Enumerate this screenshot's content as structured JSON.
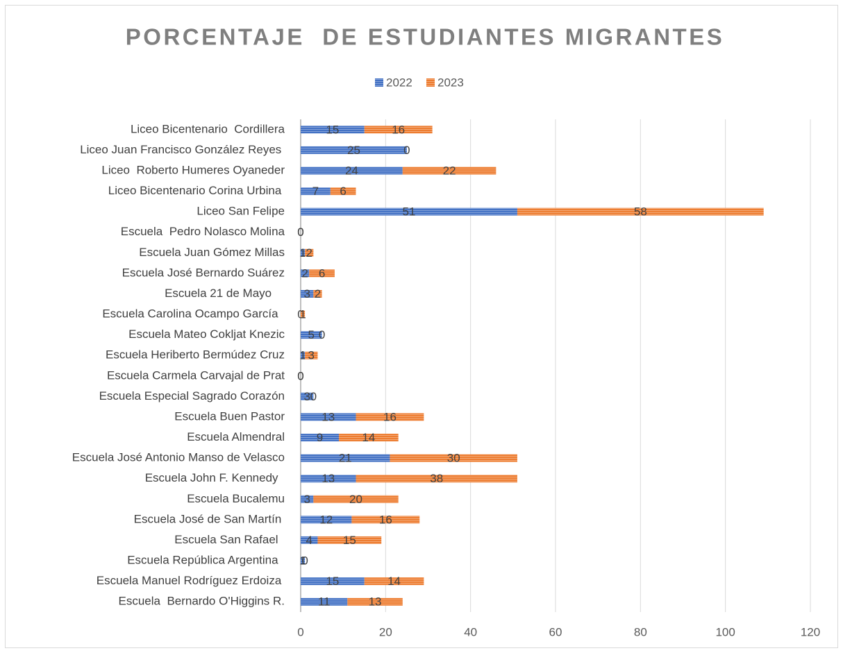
{
  "chart_data": {
    "type": "bar",
    "orientation": "horizontal",
    "stacked": true,
    "title": "PORCENTAJE  DE ESTUDIANTES MIGRANTES",
    "categories": [
      "Liceo Bicentenario  Cordillera",
      "Liceo Juan Francisco González Reyes ",
      "Liceo  Roberto Humeres Oyaneder",
      "Liceo Bicentenario Corina Urbina ",
      "Liceo San Felipe",
      "Escuela  Pedro Nolasco Molina",
      "Escuela Juan Gómez Millas",
      "Escuela José Bernardo Suárez",
      "Escuela 21 de Mayo    ",
      "Escuela Carolina Ocampo García  ",
      "Escuela Mateo Cokljat Knezic",
      "Escuela Heriberto Bermúdez Cruz",
      "Escuela Carmela Carvajal de Prat",
      "Escuela Especial Sagrado Corazón",
      "Escuela Buen Pastor",
      "Escuela Almendral",
      "Escuela José Antonio Manso de Velasco",
      "Escuela John F. Kennedy  ",
      "Escuela Bucalemu",
      "Escuela José de San Martín ",
      "Escuela San Rafael  ",
      "Escuela República Argentina  ",
      "Escuela Manuel Rodríguez Erdoiza ",
      "Escuela  Bernardo O'Higgins R."
    ],
    "series": [
      {
        "name": "2022",
        "color": "#4472c4",
        "values": [
          15,
          25,
          24,
          7,
          51,
          0,
          1,
          2,
          3,
          0,
          5,
          1,
          0,
          3,
          13,
          9,
          21,
          13,
          3,
          12,
          4,
          1,
          15,
          11
        ]
      },
      {
        "name": "2023",
        "color": "#ed7d31",
        "values": [
          16,
          0,
          22,
          6,
          58,
          0,
          2,
          6,
          2,
          1,
          0,
          3,
          0,
          0,
          16,
          14,
          30,
          38,
          20,
          16,
          15,
          0,
          14,
          13
        ]
      }
    ],
    "xlim": [
      0,
      120
    ],
    "xticks": [
      0,
      20,
      40,
      60,
      80,
      100,
      120
    ],
    "grid": true,
    "legend": "top"
  }
}
